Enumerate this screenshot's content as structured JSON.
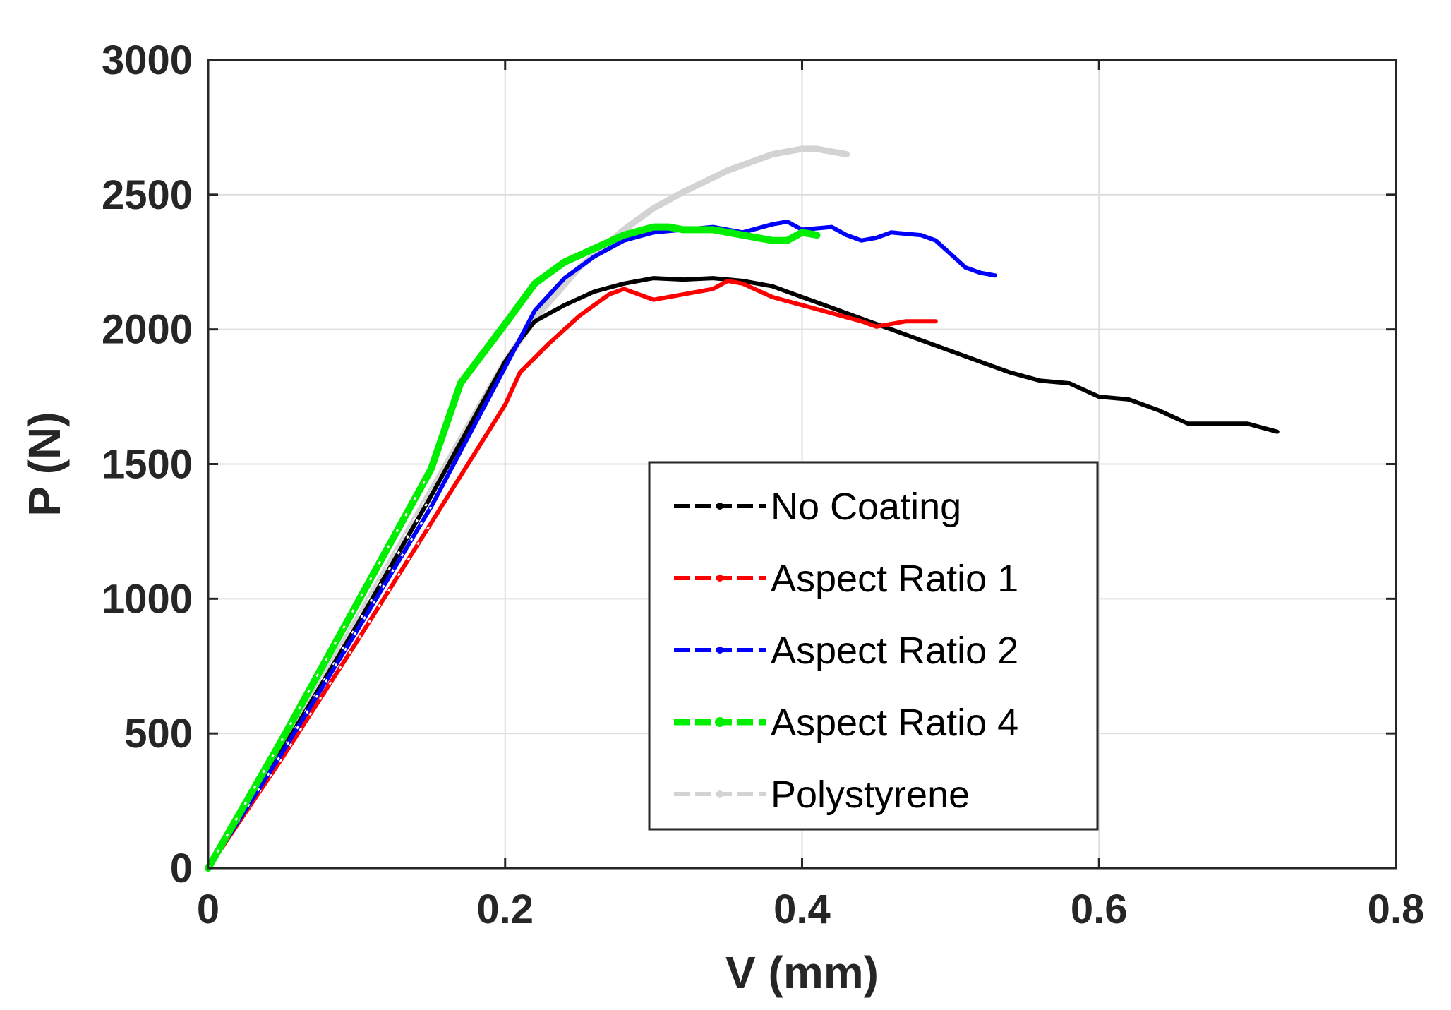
{
  "chart_data": {
    "type": "line",
    "title": "",
    "xlabel": "V (mm)",
    "ylabel": "P (N)",
    "xlim": [
      0,
      0.8
    ],
    "ylim": [
      0,
      3000
    ],
    "xticks": [
      0,
      0.2,
      0.4,
      0.6,
      0.8
    ],
    "xtick_labels": [
      "0",
      "0.2",
      "0.4",
      "0.6",
      "0.8"
    ],
    "yticks": [
      0,
      500,
      1000,
      1500,
      2000,
      2500,
      3000
    ],
    "ytick_labels": [
      "0",
      "500",
      "1000",
      "1500",
      "2000",
      "2500",
      "3000"
    ],
    "grid": true,
    "legend_position": "center-right",
    "series": [
      {
        "name": "No Coating",
        "color": "#000000",
        "x": [
          0,
          0.05,
          0.1,
          0.15,
          0.19,
          0.2,
          0.21,
          0.22,
          0.24,
          0.26,
          0.28,
          0.3,
          0.32,
          0.34,
          0.36,
          0.38,
          0.4,
          0.42,
          0.44,
          0.46,
          0.48,
          0.5,
          0.52,
          0.54,
          0.56,
          0.58,
          0.6,
          0.62,
          0.64,
          0.66,
          0.68,
          0.7,
          0.72
        ],
        "y": [
          0,
          440,
          900,
          1380,
          1780,
          1880,
          1960,
          2030,
          2090,
          2140,
          2170,
          2190,
          2185,
          2190,
          2180,
          2160,
          2120,
          2080,
          2040,
          2000,
          1960,
          1920,
          1880,
          1840,
          1810,
          1800,
          1750,
          1740,
          1700,
          1650,
          1650,
          1650,
          1620
        ]
      },
      {
        "name": "Aspect Ratio 1",
        "color": "#ff0000",
        "x": [
          0,
          0.05,
          0.1,
          0.15,
          0.2,
          0.21,
          0.23,
          0.25,
          0.27,
          0.28,
          0.29,
          0.3,
          0.32,
          0.34,
          0.35,
          0.36,
          0.38,
          0.4,
          0.42,
          0.44,
          0.45,
          0.46,
          0.47,
          0.49
        ],
        "y": [
          0,
          410,
          840,
          1280,
          1720,
          1840,
          1950,
          2050,
          2130,
          2150,
          2130,
          2110,
          2130,
          2150,
          2180,
          2170,
          2120,
          2090,
          2060,
          2030,
          2010,
          2020,
          2030,
          2030
        ]
      },
      {
        "name": "Aspect Ratio 2",
        "color": "#0000ff",
        "x": [
          0,
          0.05,
          0.1,
          0.15,
          0.2,
          0.22,
          0.24,
          0.26,
          0.28,
          0.3,
          0.32,
          0.34,
          0.36,
          0.38,
          0.39,
          0.4,
          0.42,
          0.43,
          0.44,
          0.45,
          0.46,
          0.48,
          0.49,
          0.5,
          0.51,
          0.52,
          0.53
        ],
        "y": [
          0,
          430,
          880,
          1340,
          1860,
          2070,
          2190,
          2270,
          2330,
          2360,
          2370,
          2380,
          2360,
          2390,
          2400,
          2370,
          2380,
          2350,
          2330,
          2340,
          2360,
          2350,
          2330,
          2280,
          2230,
          2210,
          2200
        ]
      },
      {
        "name": "Aspect Ratio 4",
        "color": "#00ee00",
        "x": [
          0,
          0.05,
          0.1,
          0.15,
          0.17,
          0.2,
          0.22,
          0.24,
          0.26,
          0.28,
          0.3,
          0.31,
          0.32,
          0.34,
          0.36,
          0.37,
          0.38,
          0.39,
          0.4,
          0.41
        ],
        "y": [
          0,
          480,
          980,
          1480,
          1800,
          2020,
          2170,
          2250,
          2300,
          2350,
          2380,
          2380,
          2370,
          2370,
          2350,
          2340,
          2330,
          2330,
          2360,
          2350
        ]
      },
      {
        "name": "Polystyrene",
        "color": "#d3d3d3",
        "x": [
          0,
          0.05,
          0.1,
          0.15,
          0.2,
          0.22,
          0.25,
          0.28,
          0.3,
          0.32,
          0.35,
          0.38,
          0.4,
          0.41,
          0.42,
          0.43
        ],
        "y": [
          0,
          450,
          920,
          1400,
          1880,
          2040,
          2230,
          2370,
          2450,
          2510,
          2590,
          2650,
          2670,
          2670,
          2660,
          2650
        ]
      }
    ]
  }
}
